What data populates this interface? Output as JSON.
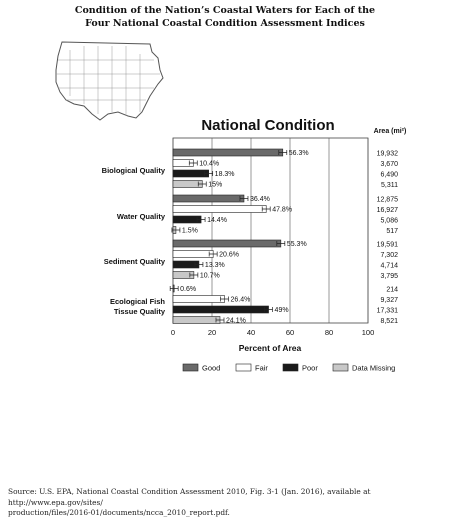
{
  "figure": {
    "title_line1": "Condition of the Nation’s Coastal Waters for Each of the",
    "title_line2": "Four National Coastal Condition Assessment Indices",
    "source_line1": "Source: U.S. EPA, National Coastal Condition Assessment 2010, Fig. 3-1 (Jan. 2016), available at http://www.epa.gov/sites/",
    "source_line2": "production/files/2016-01/documents/ncca_2010_report.pdf."
  },
  "map": {
    "icon": "us-map-icon",
    "fill": "#ffffff",
    "stroke": "#555555"
  },
  "chart_data": {
    "type": "bar",
    "orientation": "horizontal",
    "title": "National Condition",
    "xlabel": "Percent of Area",
    "xlim": [
      0,
      100
    ],
    "xticks": [
      "0",
      "20",
      "40",
      "60",
      "80",
      "100"
    ],
    "area_header": "Area (mi²)",
    "grid": true,
    "legend_position": "bottom",
    "series": [
      {
        "name": "Good",
        "color": "#6a6a6a"
      },
      {
        "name": "Fair",
        "color": "#ffffff"
      },
      {
        "name": "Poor",
        "color": "#1a1a1a"
      },
      {
        "name": "Data Missing",
        "color": "#c8c8c8"
      }
    ],
    "groups": [
      {
        "label": "Biological Quality",
        "bars": [
          {
            "series": "Good",
            "value": 56.3,
            "label": "56.3%",
            "area": "19,932"
          },
          {
            "series": "Fair",
            "value": 10.4,
            "label": "10.4%",
            "area": "3,670"
          },
          {
            "series": "Poor",
            "value": 18.3,
            "label": "18.3%",
            "area": "6,490"
          },
          {
            "series": "Data Missing",
            "value": 15,
            "label": "15%",
            "area": "5,311"
          }
        ]
      },
      {
        "label": "Water Quality",
        "bars": [
          {
            "series": "Good",
            "value": 36.4,
            "label": "36.4%",
            "area": "12,875"
          },
          {
            "series": "Fair",
            "value": 47.8,
            "label": "47.8%",
            "area": "16,927"
          },
          {
            "series": "Poor",
            "value": 14.4,
            "label": "14.4%",
            "area": "5,086"
          },
          {
            "series": "Data Missing",
            "value": 1.5,
            "label": "1.5%",
            "area": "517"
          }
        ]
      },
      {
        "label": "Sediment Quality",
        "bars": [
          {
            "series": "Good",
            "value": 55.3,
            "label": "55.3%",
            "area": "19,591"
          },
          {
            "series": "Fair",
            "value": 20.6,
            "label": "20.6%",
            "area": "7,302"
          },
          {
            "series": "Poor",
            "value": 13.3,
            "label": "13.3%",
            "area": "4,714"
          },
          {
            "series": "Data Missing",
            "value": 10.7,
            "label": "10.7%",
            "area": "3,795"
          }
        ]
      },
      {
        "label": "Ecological Fish|Tissue Quality",
        "bars": [
          {
            "series": "Good",
            "value": 0.6,
            "label": "0.6%",
            "area": "214"
          },
          {
            "series": "Fair",
            "value": 26.4,
            "label": "26.4%",
            "area": "9,327"
          },
          {
            "series": "Poor",
            "value": 49,
            "label": "49%",
            "area": "17,331"
          },
          {
            "series": "Data Missing",
            "value": 24.1,
            "label": "24.1%",
            "area": "8,521"
          }
        ]
      }
    ]
  }
}
